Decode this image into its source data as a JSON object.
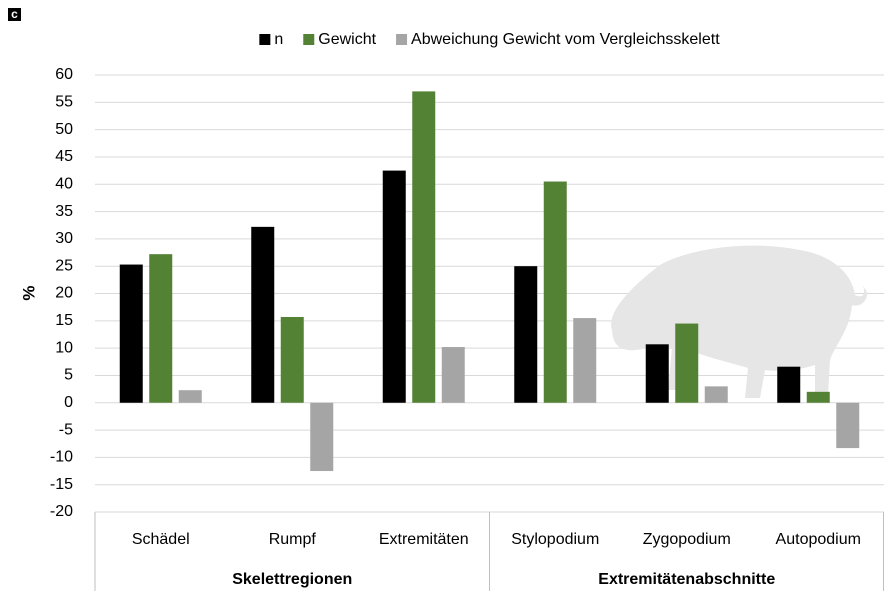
{
  "chart_data": {
    "type": "bar",
    "panel_label": "c",
    "ylabel": "%",
    "categories": [
      "Schädel",
      "Rumpf",
      "Extremitäten",
      "Stylopodium",
      "Zygopodium",
      "Autopodium"
    ],
    "groups": [
      "Skelettregionen",
      "Extremitätenabschnitte"
    ],
    "series": [
      {
        "name": "n",
        "color": "#000000",
        "values": [
          25.3,
          32.2,
          42.5,
          25,
          10.7,
          6.6
        ]
      },
      {
        "name": "Gewicht",
        "color": "#548235",
        "values": [
          27.2,
          15.7,
          57,
          40.5,
          14.5,
          2
        ]
      },
      {
        "name": "Abweichung Gewicht vom Vergleichsskelett",
        "color": "#a5a5a5",
        "values": [
          2.3,
          -12.5,
          10.2,
          15.5,
          3,
          -8.3
        ]
      }
    ],
    "ylim": [
      -20,
      60
    ],
    "yticks": [
      -20,
      -15,
      -10,
      -5,
      0,
      5,
      10,
      15,
      20,
      25,
      30,
      35,
      40,
      45,
      50,
      55,
      60
    ],
    "grid": true,
    "legend": "top"
  }
}
